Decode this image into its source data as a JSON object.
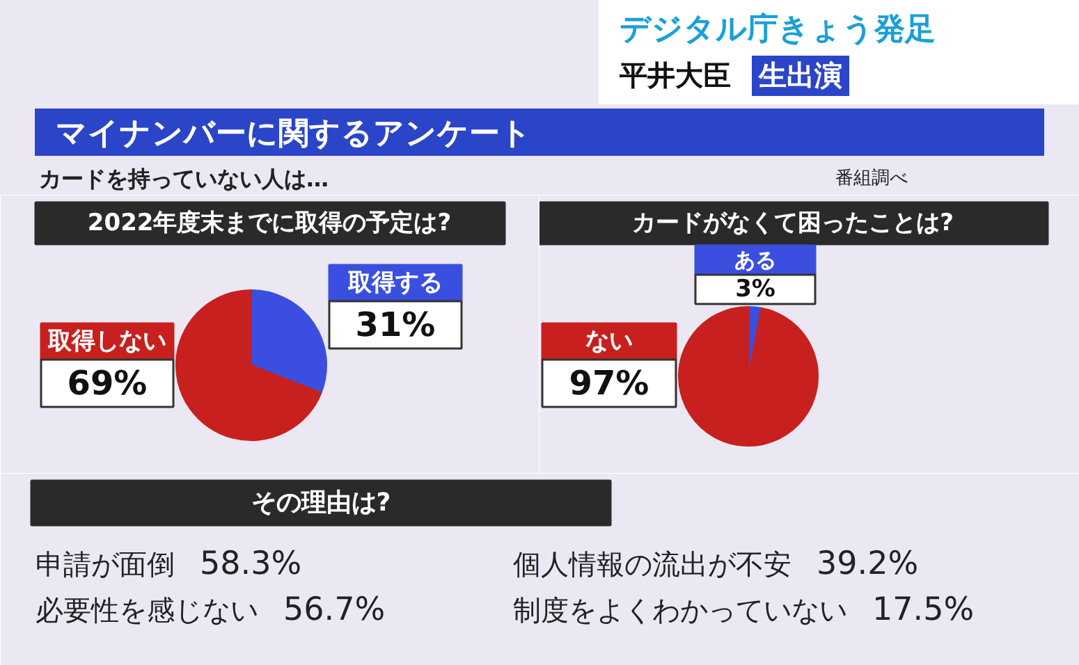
{
  "chart_data": [
    {
      "type": "pie",
      "title": "2022年度末までに取得の予定は?",
      "categories": [
        "取得する",
        "取得しない"
      ],
      "values": [
        31,
        69
      ],
      "colors": [
        "#3a4fe0",
        "#c8201e"
      ],
      "value_labels": [
        "31%",
        "69%"
      ],
      "annotations": [
        "デジタル庁きょう発足",
        "平井大臣",
        "生出演",
        "マイナンバーに関するアンケート",
        "カードを持っていない人は…",
        "番組調べ"
      ]
    },
    {
      "type": "pie",
      "title": "カードがなくて困ったことは?",
      "categories": [
        "ある",
        "ない"
      ],
      "values": [
        3,
        97
      ],
      "colors": [
        "#3a4fe0",
        "#c8201e"
      ],
      "value_labels": [
        "3%",
        "97%"
      ]
    },
    {
      "type": "other",
      "title": "その理由は?",
      "categories": [
        "申請が面倒",
        "必要性を感じない",
        "個人情報の流出が不安",
        "制度をよくわかっていない"
      ],
      "values": [
        58.3,
        56.7,
        39.2,
        17.5
      ],
      "value_labels": [
        "58.3%",
        "56.7%",
        "39.2%",
        "17.5%"
      ]
    }
  ]
}
